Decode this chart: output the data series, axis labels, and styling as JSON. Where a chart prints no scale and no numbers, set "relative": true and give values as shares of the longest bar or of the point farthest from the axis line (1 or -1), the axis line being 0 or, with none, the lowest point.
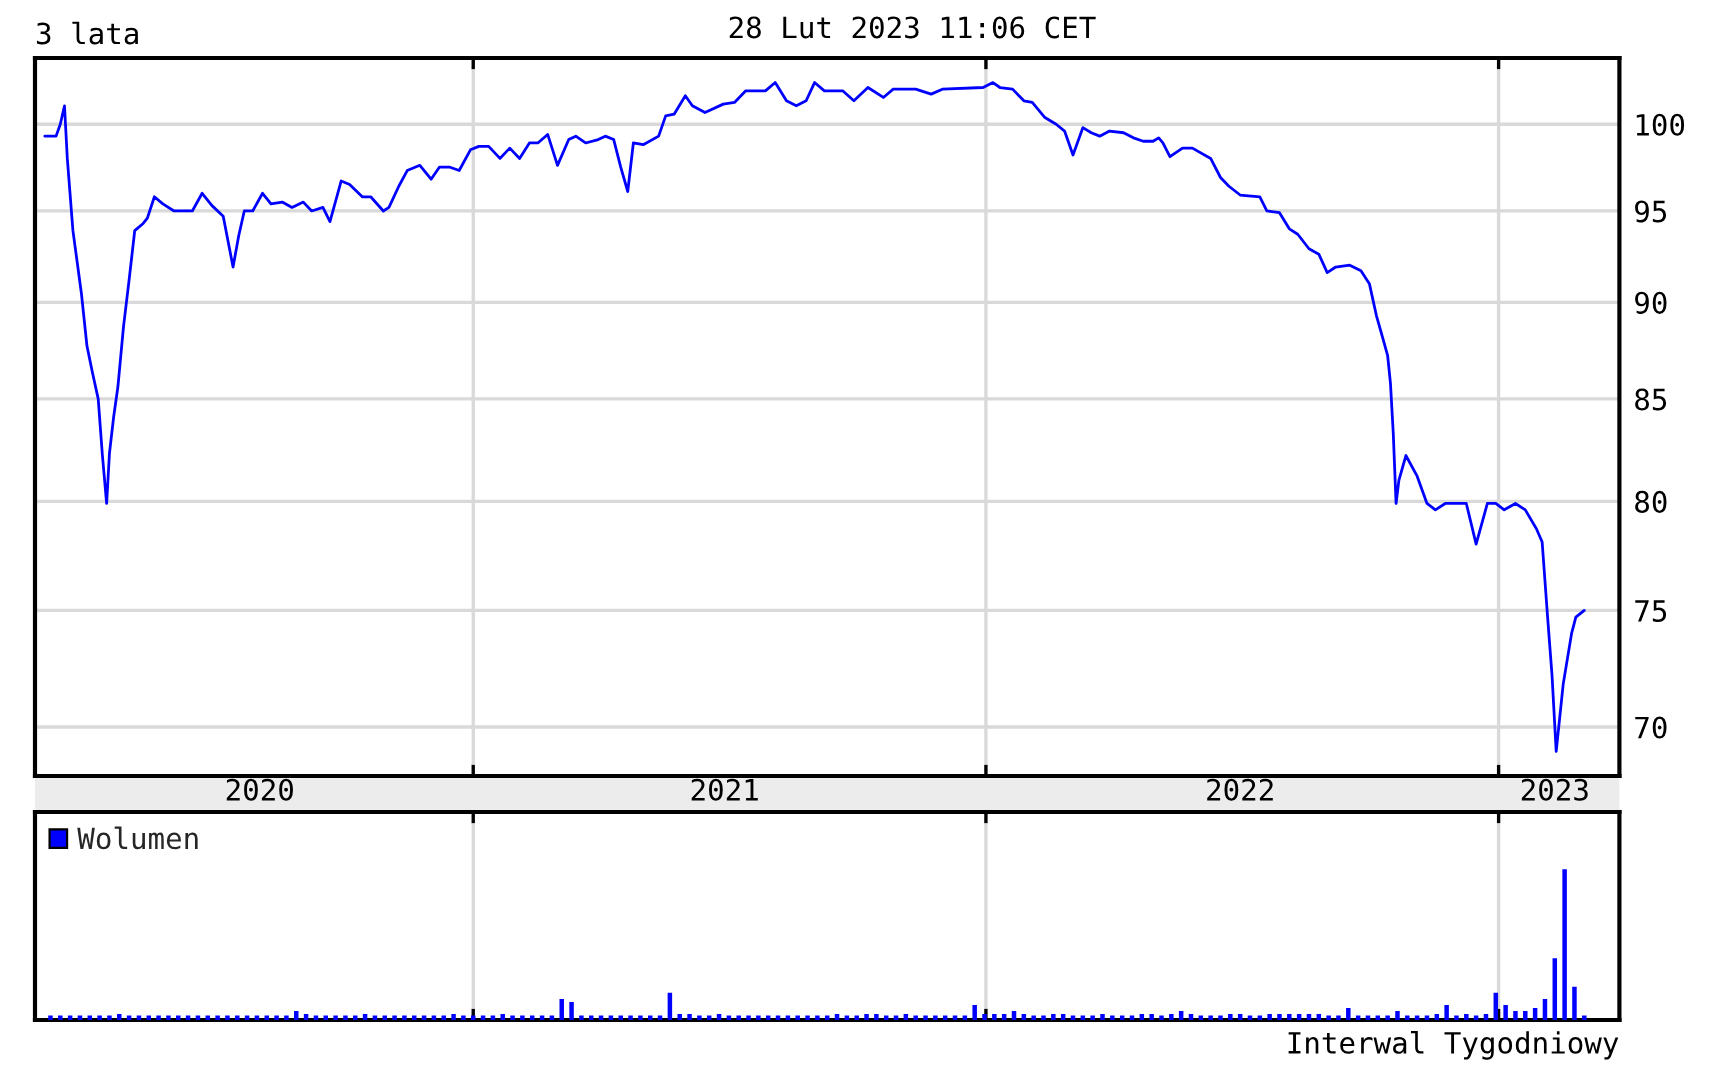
{
  "chart_data": [
    {
      "type": "line",
      "title": "3 lata",
      "subtitle": "28 Lut 2023 11:06 CET",
      "color": "#0000ff",
      "log": true,
      "grid": true,
      "tick_labels": "y",
      "xlim": [
        "2020-02-24",
        "2023-03-28"
      ],
      "xticks": [
        {
          "value": "2021-01-01",
          "label": null
        },
        {
          "value": "2022-01-01",
          "label": null
        },
        {
          "value": "2023-01-01",
          "label": null
        }
      ],
      "ylim": [
        68,
        104
      ],
      "yticks": [
        70,
        75,
        80,
        85,
        90,
        95,
        100
      ],
      "x": [
        "2020-03-02",
        "2020-03-10",
        "2020-03-13",
        "2020-03-16",
        "2020-03-18",
        "2020-03-22",
        "2020-03-28",
        "2020-04-01",
        "2020-04-05",
        "2020-04-09",
        "2020-04-12",
        "2020-04-15",
        "2020-04-17",
        "2020-04-20",
        "2020-04-23",
        "2020-04-27",
        "2020-05-01",
        "2020-05-05",
        "2020-05-11",
        "2020-05-14",
        "2020-05-19",
        "2020-05-25",
        "2020-06-02",
        "2020-06-08",
        "2020-06-15",
        "2020-06-22",
        "2020-06-29",
        "2020-07-07",
        "2020-07-14",
        "2020-07-18",
        "2020-07-22",
        "2020-07-28",
        "2020-08-04",
        "2020-08-10",
        "2020-08-18",
        "2020-08-25",
        "2020-09-02",
        "2020-09-08",
        "2020-09-16",
        "2020-09-21",
        "2020-09-29",
        "2020-10-05",
        "2020-10-14",
        "2020-10-20",
        "2020-10-29",
        "2020-11-02",
        "2020-11-09",
        "2020-11-15",
        "2020-11-24",
        "2020-12-02",
        "2020-12-08",
        "2020-12-15",
        "2020-12-22",
        "2020-12-30",
        "2021-01-05",
        "2021-01-12",
        "2021-01-20",
        "2021-01-27",
        "2021-02-03",
        "2021-02-10",
        "2021-02-16",
        "2021-02-23",
        "2021-03-02",
        "2021-03-10",
        "2021-03-15",
        "2021-03-22",
        "2021-03-31",
        "2021-04-05",
        "2021-04-11",
        "2021-04-16",
        "2021-04-21",
        "2021-04-25",
        "2021-05-02",
        "2021-05-13",
        "2021-05-18",
        "2021-05-24",
        "2021-06-01",
        "2021-06-06",
        "2021-06-15",
        "2021-06-28",
        "2021-07-06",
        "2021-07-14",
        "2021-07-28",
        "2021-08-04",
        "2021-08-12",
        "2021-08-19",
        "2021-08-26",
        "2021-09-01",
        "2021-09-08",
        "2021-09-21",
        "2021-09-29",
        "2021-10-09",
        "2021-10-20",
        "2021-10-27",
        "2021-11-12",
        "2021-11-23",
        "2021-12-01",
        "2021-12-30",
        "2022-01-06",
        "2022-01-11",
        "2022-01-20",
        "2022-01-28",
        "2022-02-03",
        "2022-02-12",
        "2022-02-20",
        "2022-02-26",
        "2022-03-04",
        "2022-03-11",
        "2022-03-17",
        "2022-03-23",
        "2022-03-30",
        "2022-04-09",
        "2022-04-16",
        "2022-04-23",
        "2022-04-30",
        "2022-05-04",
        "2022-05-07",
        "2022-05-12",
        "2022-05-21",
        "2022-05-28",
        "2022-06-10",
        "2022-06-17",
        "2022-06-23",
        "2022-07-01",
        "2022-07-15",
        "2022-07-20",
        "2022-07-29",
        "2022-08-05",
        "2022-08-11",
        "2022-08-19",
        "2022-08-26",
        "2022-09-01",
        "2022-09-07",
        "2022-09-17",
        "2022-09-25",
        "2022-10-01",
        "2022-10-06",
        "2022-10-11",
        "2022-10-14",
        "2022-10-16",
        "2022-10-18",
        "2022-10-20",
        "2022-10-22",
        "2022-10-27",
        "2022-11-04",
        "2022-11-11",
        "2022-11-17",
        "2022-11-24",
        "2022-12-09",
        "2022-12-16",
        "2022-12-24",
        "2022-12-30",
        "2023-01-05",
        "2023-01-13",
        "2023-01-20",
        "2023-01-28",
        "2023-02-01",
        "2023-02-05",
        "2023-02-08",
        "2023-02-11",
        "2023-02-16",
        "2023-02-22",
        "2023-02-25",
        "2023-03-03"
      ],
      "values": [
        99.3,
        99.3,
        100.0,
        101.1,
        98.0,
        93.9,
        90.5,
        87.7,
        86.3,
        85.0,
        82.2,
        79.9,
        82.3,
        84.1,
        85.6,
        88.7,
        91.2,
        93.9,
        94.3,
        94.6,
        95.8,
        95.4,
        95.0,
        95.0,
        95.0,
        96.0,
        95.3,
        94.7,
        91.9,
        93.6,
        95.0,
        95.0,
        96.0,
        95.4,
        95.5,
        95.2,
        95.5,
        95.0,
        95.2,
        94.4,
        96.7,
        96.5,
        95.8,
        95.8,
        95.0,
        95.2,
        96.4,
        97.3,
        97.6,
        96.8,
        97.5,
        97.5,
        97.3,
        98.5,
        98.7,
        98.7,
        98.0,
        98.6,
        98.0,
        98.9,
        98.9,
        99.4,
        97.6,
        99.1,
        99.3,
        98.9,
        99.1,
        99.3,
        99.1,
        97.5,
        96.1,
        98.9,
        98.8,
        99.3,
        100.5,
        100.6,
        101.7,
        101.1,
        100.7,
        101.2,
        101.3,
        102.0,
        102.0,
        102.5,
        101.4,
        101.1,
        101.4,
        102.5,
        102.0,
        102.0,
        101.4,
        102.2,
        101.6,
        102.1,
        102.1,
        101.8,
        102.1,
        102.2,
        102.5,
        102.2,
        102.1,
        101.4,
        101.3,
        100.4,
        100.0,
        99.6,
        98.2,
        99.8,
        99.5,
        99.3,
        99.6,
        99.5,
        99.2,
        99.0,
        99.0,
        99.2,
        98.9,
        98.1,
        98.6,
        98.6,
        98.0,
        96.9,
        96.4,
        95.9,
        95.8,
        95.0,
        94.9,
        94.0,
        93.7,
        92.9,
        92.6,
        91.6,
        91.9,
        92.0,
        91.7,
        91.0,
        89.3,
        88.0,
        87.2,
        85.8,
        83.3,
        79.9,
        81.0,
        82.2,
        81.2,
        79.9,
        79.6,
        79.9,
        79.9,
        78.0,
        79.9,
        79.9,
        79.6,
        79.9,
        79.6,
        78.7,
        78.1,
        74.6,
        72.2,
        69.0,
        71.8,
        74.0,
        74.7,
        75.0
      ]
    },
    {
      "type": "bar",
      "relative": true,
      "legend": "top left",
      "grid": "x",
      "annotations": [
        "Interwal Tygodniowy"
      ],
      "xlim": [
        "2020-02-24",
        "2023-03-28"
      ],
      "xticks": [
        {
          "value": "2020-08-02",
          "label": "2020"
        },
        {
          "value": "2021-01-01",
          "label": null
        },
        {
          "value": "2021-06-29",
          "label": "2021"
        },
        {
          "value": "2022-01-01",
          "label": null
        },
        {
          "value": "2022-07-01",
          "label": "2022"
        },
        {
          "value": "2023-01-01",
          "label": null
        },
        {
          "value": "2023-02-10",
          "label": "2023"
        }
      ],
      "x": [
        "2020-03-06",
        "2020-03-13",
        "2020-03-20",
        "2020-03-27",
        "2020-04-03",
        "2020-04-10",
        "2020-04-17",
        "2020-04-24",
        "2020-05-01",
        "2020-05-08",
        "2020-05-15",
        "2020-05-22",
        "2020-05-29",
        "2020-06-05",
        "2020-06-12",
        "2020-06-19",
        "2020-06-26",
        "2020-07-03",
        "2020-07-10",
        "2020-07-17",
        "2020-07-24",
        "2020-07-31",
        "2020-08-07",
        "2020-08-14",
        "2020-08-21",
        "2020-08-28",
        "2020-09-04",
        "2020-09-11",
        "2020-09-18",
        "2020-09-25",
        "2020-10-02",
        "2020-10-09",
        "2020-10-16",
        "2020-10-23",
        "2020-10-30",
        "2020-11-06",
        "2020-11-13",
        "2020-11-20",
        "2020-11-27",
        "2020-12-04",
        "2020-12-11",
        "2020-12-18",
        "2020-12-25",
        "2021-01-01",
        "2021-01-08",
        "2021-01-15",
        "2021-01-22",
        "2021-01-29",
        "2021-02-05",
        "2021-02-12",
        "2021-02-19",
        "2021-02-26",
        "2021-03-05",
        "2021-03-12",
        "2021-03-19",
        "2021-03-26",
        "2021-04-02",
        "2021-04-09",
        "2021-04-16",
        "2021-04-23",
        "2021-04-30",
        "2021-05-07",
        "2021-05-14",
        "2021-05-21",
        "2021-05-28",
        "2021-06-04",
        "2021-06-11",
        "2021-06-18",
        "2021-06-25",
        "2021-07-02",
        "2021-07-09",
        "2021-07-16",
        "2021-07-23",
        "2021-07-30",
        "2021-08-06",
        "2021-08-13",
        "2021-08-20",
        "2021-08-27",
        "2021-09-03",
        "2021-09-10",
        "2021-09-17",
        "2021-09-24",
        "2021-10-01",
        "2021-10-08",
        "2021-10-15",
        "2021-10-22",
        "2021-10-29",
        "2021-11-05",
        "2021-11-12",
        "2021-11-19",
        "2021-11-26",
        "2021-12-03",
        "2021-12-10",
        "2021-12-17",
        "2021-12-24",
        "2021-12-31",
        "2022-01-07",
        "2022-01-14",
        "2022-01-21",
        "2022-01-28",
        "2022-02-04",
        "2022-02-11",
        "2022-02-18",
        "2022-02-25",
        "2022-03-04",
        "2022-03-11",
        "2022-03-18",
        "2022-03-25",
        "2022-04-01",
        "2022-04-08",
        "2022-04-15",
        "2022-04-22",
        "2022-04-29",
        "2022-05-06",
        "2022-05-13",
        "2022-05-20",
        "2022-05-27",
        "2022-06-03",
        "2022-06-10",
        "2022-06-17",
        "2022-06-24",
        "2022-07-01",
        "2022-07-08",
        "2022-07-15",
        "2022-07-22",
        "2022-07-29",
        "2022-08-05",
        "2022-08-12",
        "2022-08-19",
        "2022-08-26",
        "2022-09-02",
        "2022-09-09",
        "2022-09-16",
        "2022-09-23",
        "2022-09-30",
        "2022-10-07",
        "2022-10-14",
        "2022-10-21",
        "2022-10-28",
        "2022-11-04",
        "2022-11-11",
        "2022-11-18",
        "2022-11-25",
        "2022-12-02",
        "2022-12-09",
        "2022-12-16",
        "2022-12-23",
        "2022-12-30",
        "2023-01-06",
        "2023-01-13",
        "2023-01-20",
        "2023-01-27",
        "2023-02-03",
        "2023-02-10",
        "2023-02-17",
        "2023-02-24",
        "2023-03-03"
      ],
      "series": [
        {
          "name": "Wolumen",
          "color": "#0000ff",
          "values": [
            0.03,
            0.03,
            0.03,
            0.03,
            0.03,
            0.03,
            0.03,
            0.04,
            0.03,
            0.03,
            0.03,
            0.03,
            0.03,
            0.03,
            0.03,
            0.03,
            0.03,
            0.03,
            0.03,
            0.03,
            0.03,
            0.03,
            0.03,
            0.03,
            0.03,
            0.06,
            0.04,
            0.03,
            0.03,
            0.03,
            0.03,
            0.03,
            0.04,
            0.03,
            0.03,
            0.03,
            0.03,
            0.03,
            0.03,
            0.03,
            0.03,
            0.04,
            0.03,
            0.03,
            0.03,
            0.03,
            0.04,
            0.03,
            0.03,
            0.03,
            0.03,
            0.03,
            0.14,
            0.12,
            0.03,
            0.03,
            0.03,
            0.03,
            0.03,
            0.03,
            0.03,
            0.03,
            0.03,
            0.18,
            0.04,
            0.04,
            0.03,
            0.03,
            0.04,
            0.03,
            0.03,
            0.03,
            0.03,
            0.03,
            0.03,
            0.03,
            0.03,
            0.03,
            0.03,
            0.03,
            0.04,
            0.03,
            0.03,
            0.04,
            0.04,
            0.03,
            0.03,
            0.04,
            0.03,
            0.03,
            0.03,
            0.03,
            0.03,
            0.03,
            0.1,
            0.04,
            0.04,
            0.04,
            0.06,
            0.04,
            0.03,
            0.03,
            0.04,
            0.04,
            0.03,
            0.03,
            0.03,
            0.04,
            0.03,
            0.03,
            0.03,
            0.04,
            0.04,
            0.03,
            0.04,
            0.06,
            0.04,
            0.03,
            0.03,
            0.03,
            0.04,
            0.04,
            0.03,
            0.03,
            0.04,
            0.04,
            0.04,
            0.04,
            0.04,
            0.04,
            0.03,
            0.03,
            0.08,
            0.03,
            0.03,
            0.03,
            0.03,
            0.06,
            0.03,
            0.03,
            0.03,
            0.04,
            0.1,
            0.03,
            0.04,
            0.03,
            0.04,
            0.18,
            0.1,
            0.06,
            0.06,
            0.08,
            0.14,
            0.41,
            1,
            0.22,
            0.03
          ]
        }
      ]
    }
  ]
}
